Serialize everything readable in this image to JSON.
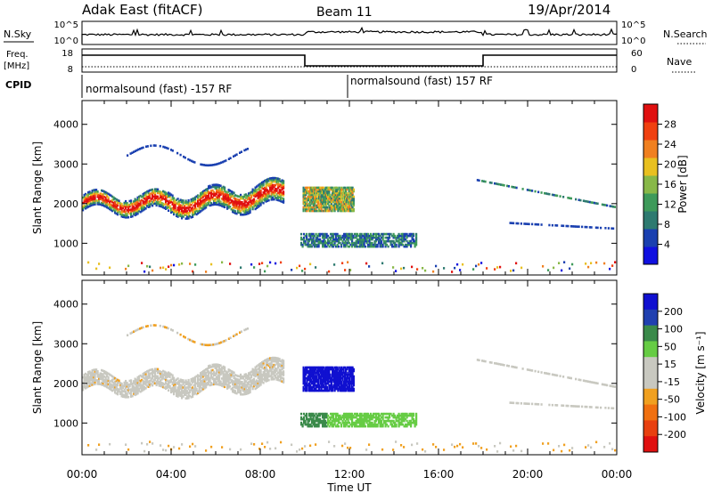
{
  "header": {
    "station": "Adak East (fitACF)",
    "beam": "Beam 11",
    "date": "19/Apr/2014"
  },
  "strips": {
    "nsky_label": "N.Sky",
    "nsearch_label": "N.Search",
    "nsky_ticks": [
      "10^5",
      "10^0"
    ],
    "nsearch_ticks": [
      "10^5",
      "10^0"
    ],
    "freq_label_1": "Freq.",
    "freq_label_2": "[MHz]",
    "freq_ticks": [
      "18",
      "8"
    ],
    "nave_label": "Nave",
    "nave_ticks": [
      "60",
      "0"
    ],
    "cpid_label": "CPID",
    "cpid_segments": [
      "normalsound (fast) -157 RF",
      "normalsound (fast) 157 RF"
    ]
  },
  "colors": {
    "power": [
      "#1010e0",
      "#1a40b0",
      "#2e7a70",
      "#3e9a5a",
      "#88b848",
      "#e8c020",
      "#f08020",
      "#f04010",
      "#e01010"
    ],
    "velocity": [
      "#1010d0",
      "#2040b0",
      "#3a8a4a",
      "#66cc44",
      "#c8c8c0",
      "#c8c8c0",
      "#f0a020",
      "#f07010",
      "#e84010",
      "#e01010"
    ]
  },
  "chart_data": [
    {
      "type": "heatmap",
      "ylabel": "Slant Range [km]",
      "xlabel": "Time UT",
      "x_ticks": [
        "00:00",
        "04:00",
        "08:00",
        "12:00",
        "16:00",
        "20:00",
        "00:00"
      ],
      "y_ticks": [
        "1000",
        "2000",
        "3000",
        "4000"
      ],
      "ylim": [
        200,
        4600
      ],
      "xlim_hours": [
        0,
        24
      ],
      "colorbar": {
        "label": "Power [dB]",
        "ticks": [
          "4",
          "8",
          "12",
          "16",
          "20",
          "24",
          "28"
        ]
      }
    },
    {
      "type": "heatmap",
      "ylabel": "Slant Range [km]",
      "xlabel": "Time UT",
      "x_ticks": [
        "00:00",
        "04:00",
        "08:00",
        "12:00",
        "16:00",
        "20:00",
        "00:00"
      ],
      "y_ticks": [
        "1000",
        "2000",
        "3000",
        "4000"
      ],
      "ylim": [
        200,
        4600
      ],
      "xlim_hours": [
        0,
        24
      ],
      "colorbar": {
        "label": "Velocity [m s⁻¹]",
        "ticks": [
          "200",
          "100",
          "50",
          "15",
          "-15",
          "-50",
          "-100",
          "-200"
        ]
      }
    }
  ]
}
